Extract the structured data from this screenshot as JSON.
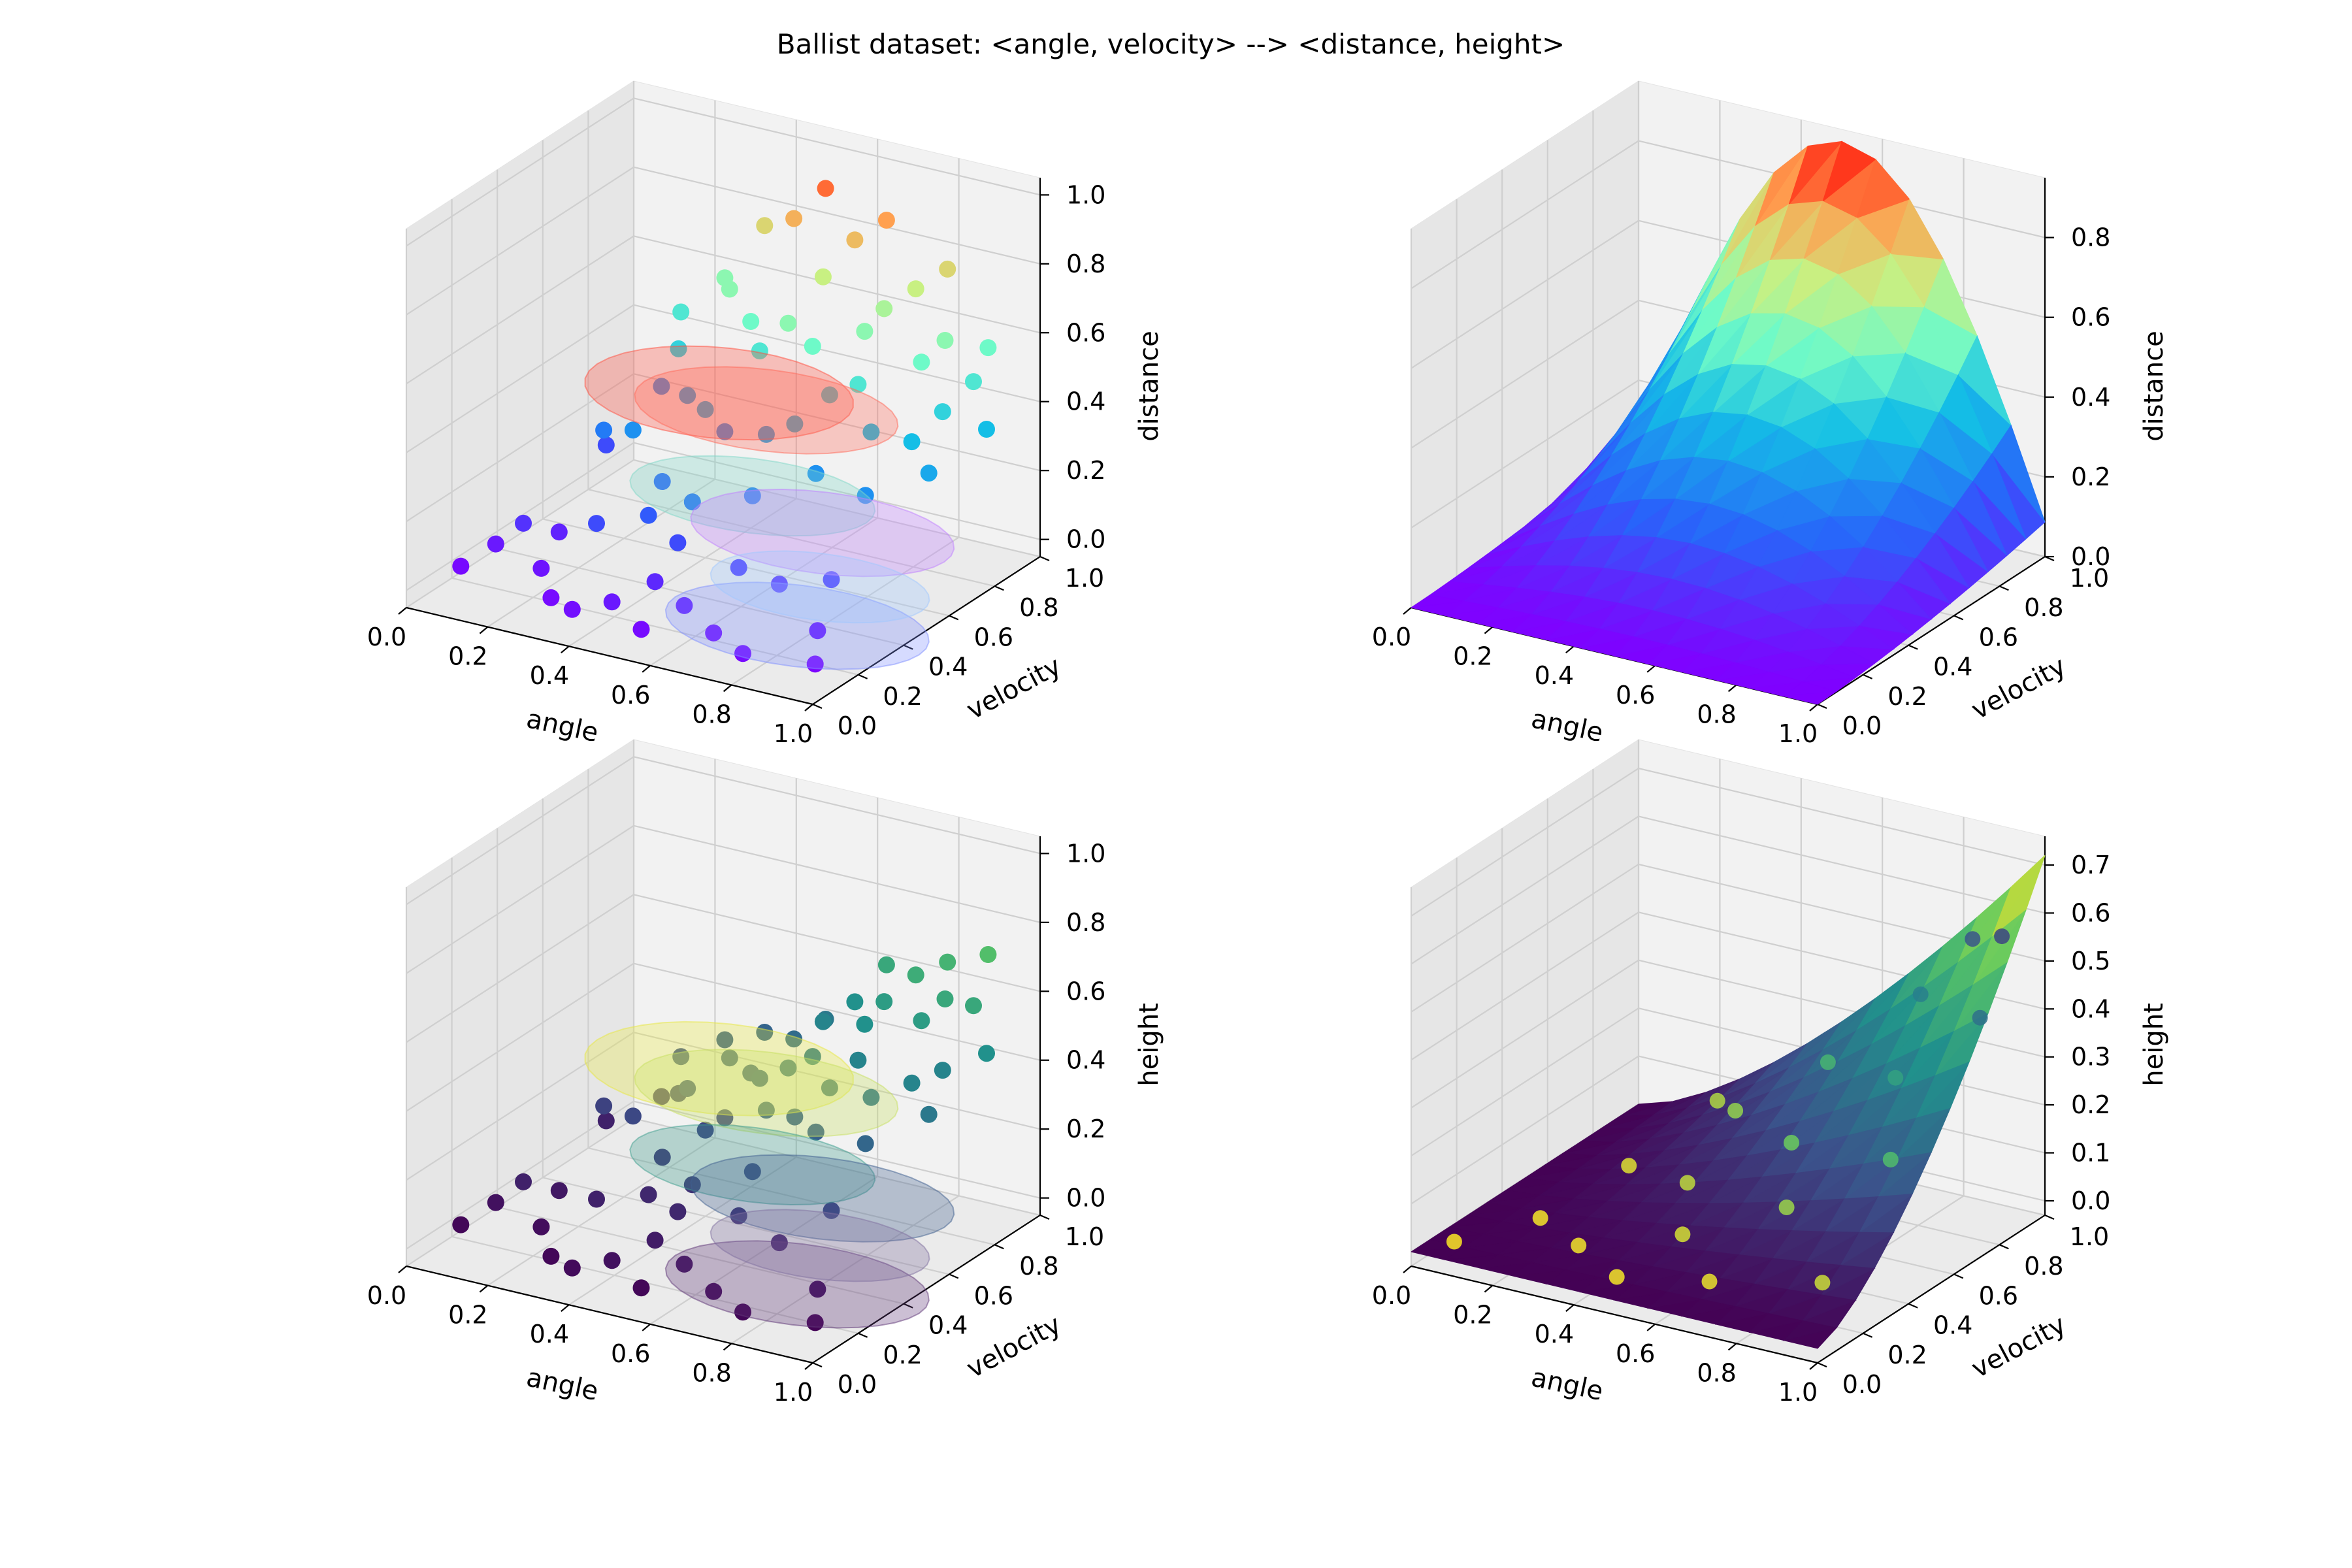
{
  "figure": {
    "title": "Ballist dataset: <angle, velocity> --> <distance, height>"
  },
  "chart_data": [
    {
      "id": "distance-scatter",
      "type": "scatter",
      "xlabel": "angle",
      "ylabel": "velocity",
      "zlabel": "distance",
      "xlim": [
        0,
        1
      ],
      "ylim": [
        0,
        1
      ],
      "zlim": [
        -0.05,
        1.05
      ],
      "xticks": [
        "0.0",
        "0.2",
        "0.4",
        "0.6",
        "0.8",
        "1.0"
      ],
      "yticks": [
        "0.0",
        "0.2",
        "0.4",
        "0.6",
        "0.8",
        "1.0"
      ],
      "zticks": [
        "0.0",
        "0.2",
        "0.4",
        "0.6",
        "0.8",
        "1.0"
      ],
      "colormap": "rainbow",
      "points": [
        [
          0.05,
          0.15,
          0.02
        ],
        [
          0.08,
          0.25,
          0.05
        ],
        [
          0.12,
          0.3,
          0.1
        ],
        [
          0.18,
          0.35,
          0.07
        ],
        [
          0.22,
          0.2,
          0.04
        ],
        [
          0.3,
          0.1,
          0.02
        ],
        [
          0.38,
          0.05,
          0.03
        ],
        [
          0.45,
          0.1,
          0.05
        ],
        [
          0.5,
          0.2,
          0.08
        ],
        [
          0.55,
          0.05,
          0.02
        ],
        [
          0.6,
          0.15,
          0.06
        ],
        [
          0.7,
          0.1,
          0.03
        ],
        [
          0.75,
          0.3,
          0.1
        ],
        [
          0.8,
          0.05,
          0.02
        ],
        [
          0.9,
          0.2,
          0.05
        ],
        [
          0.95,
          0.1,
          0.01
        ],
        [
          0.15,
          0.6,
          0.25
        ],
        [
          0.25,
          0.55,
          0.3
        ],
        [
          0.3,
          0.7,
          0.35
        ],
        [
          0.35,
          0.5,
          0.2
        ],
        [
          0.42,
          0.65,
          0.3
        ],
        [
          0.48,
          0.4,
          0.22
        ],
        [
          0.55,
          0.6,
          0.35
        ],
        [
          0.6,
          0.45,
          0.25
        ],
        [
          0.65,
          0.7,
          0.45
        ],
        [
          0.7,
          0.55,
          0.3
        ],
        [
          0.78,
          0.65,
          0.4
        ],
        [
          0.85,
          0.5,
          0.3
        ],
        [
          0.9,
          0.75,
          0.45
        ],
        [
          0.95,
          0.6,
          0.35
        ],
        [
          0.2,
          0.85,
          0.5
        ],
        [
          0.28,
          0.9,
          0.6
        ],
        [
          0.35,
          0.95,
          0.75
        ],
        [
          0.4,
          0.8,
          0.55
        ],
        [
          0.45,
          0.9,
          0.82
        ],
        [
          0.5,
          0.95,
          0.9
        ],
        [
          0.55,
          0.85,
          0.7
        ],
        [
          0.6,
          0.9,
          0.8
        ],
        [
          0.65,
          0.95,
          0.85
        ],
        [
          0.7,
          0.85,
          0.65
        ],
        [
          0.75,
          0.9,
          0.7
        ],
        [
          0.8,
          0.95,
          0.75
        ],
        [
          0.85,
          0.85,
          0.6
        ],
        [
          0.9,
          0.95,
          0.55
        ],
        [
          0.1,
          0.7,
          0.15
        ],
        [
          0.18,
          0.8,
          0.3
        ],
        [
          0.25,
          0.75,
          0.45
        ],
        [
          0.32,
          0.85,
          0.6
        ],
        [
          0.4,
          0.6,
          0.38
        ],
        [
          0.45,
          0.75,
          0.5
        ],
        [
          0.52,
          0.75,
          0.6
        ],
        [
          0.58,
          0.75,
          0.55
        ],
        [
          0.62,
          0.6,
          0.4
        ],
        [
          0.68,
          0.8,
          0.6
        ],
        [
          0.72,
          0.7,
          0.5
        ],
        [
          0.82,
          0.8,
          0.55
        ],
        [
          0.88,
          0.65,
          0.4
        ],
        [
          0.92,
          0.85,
          0.5
        ],
        [
          0.98,
          0.8,
          0.4
        ],
        [
          0.3,
          0.3,
          0.15
        ],
        [
          0.4,
          0.35,
          0.18
        ],
        [
          0.5,
          0.3,
          0.15
        ],
        [
          0.65,
          0.3,
          0.12
        ],
        [
          0.85,
          0.35,
          0.12
        ]
      ],
      "ellipses": [
        {
          "cx": 0.35,
          "cy": 0.75,
          "z": 0.35,
          "rx": 0.3,
          "ry": 0.25,
          "color": "#ff5040"
        },
        {
          "cx": 0.55,
          "cy": 0.6,
          "z": 0.42,
          "rx": 0.3,
          "ry": 0.22,
          "color": "#ff6a5a"
        },
        {
          "cx": 0.6,
          "cy": 0.45,
          "z": 0.25,
          "rx": 0.28,
          "ry": 0.2,
          "color": "#80d8c8"
        },
        {
          "cx": 0.8,
          "cy": 0.4,
          "z": 0.22,
          "rx": 0.3,
          "ry": 0.22,
          "color": "#c080ff"
        },
        {
          "cx": 0.85,
          "cy": 0.2,
          "z": 0.05,
          "rx": 0.3,
          "ry": 0.22,
          "color": "#8090ff"
        },
        {
          "cx": 0.85,
          "cy": 0.3,
          "z": 0.12,
          "rx": 0.25,
          "ry": 0.18,
          "color": "#a0c8ff"
        }
      ]
    },
    {
      "id": "distance-surface",
      "type": "surface",
      "xlabel": "angle",
      "ylabel": "velocity",
      "zlabel": "distance",
      "xlim": [
        0,
        1
      ],
      "ylim": [
        0,
        1
      ],
      "zlim": [
        0,
        0.95
      ],
      "xticks": [
        "0.0",
        "0.2",
        "0.4",
        "0.6",
        "0.8",
        "1.0"
      ],
      "yticks": [
        "0.0",
        "0.2",
        "0.4",
        "0.6",
        "0.8",
        "1.0"
      ],
      "zticks": [
        "0.0",
        "0.2",
        "0.4",
        "0.6",
        "0.8"
      ],
      "colormap": "rainbow",
      "surface": "distance"
    },
    {
      "id": "height-scatter",
      "type": "scatter",
      "xlabel": "angle",
      "ylabel": "velocity",
      "zlabel": "height",
      "xlim": [
        0,
        1
      ],
      "ylim": [
        0,
        1
      ],
      "zlim": [
        -0.05,
        1.05
      ],
      "xticks": [
        "0.0",
        "0.2",
        "0.4",
        "0.6",
        "0.8",
        "1.0"
      ],
      "yticks": [
        "0.0",
        "0.2",
        "0.4",
        "0.6",
        "0.8",
        "1.0"
      ],
      "zticks": [
        "0.0",
        "0.2",
        "0.4",
        "0.6",
        "0.8",
        "1.0"
      ],
      "colormap": "viridis",
      "points": [
        [
          0.05,
          0.15,
          0.02
        ],
        [
          0.08,
          0.25,
          0.05
        ],
        [
          0.12,
          0.3,
          0.1
        ],
        [
          0.18,
          0.35,
          0.07
        ],
        [
          0.22,
          0.2,
          0.04
        ],
        [
          0.3,
          0.1,
          0.02
        ],
        [
          0.38,
          0.05,
          0.03
        ],
        [
          0.45,
          0.1,
          0.05
        ],
        [
          0.5,
          0.2,
          0.08
        ],
        [
          0.55,
          0.05,
          0.02
        ],
        [
          0.6,
          0.15,
          0.06
        ],
        [
          0.7,
          0.1,
          0.03
        ],
        [
          0.75,
          0.3,
          0.1
        ],
        [
          0.8,
          0.05,
          0.02
        ],
        [
          0.9,
          0.2,
          0.05
        ],
        [
          0.95,
          0.1,
          0.01
        ],
        [
          0.15,
          0.6,
          0.2
        ],
        [
          0.25,
          0.55,
          0.22
        ],
        [
          0.3,
          0.7,
          0.25
        ],
        [
          0.35,
          0.5,
          0.15
        ],
        [
          0.42,
          0.65,
          0.22
        ],
        [
          0.48,
          0.4,
          0.15
        ],
        [
          0.55,
          0.6,
          0.3
        ],
        [
          0.6,
          0.45,
          0.2
        ],
        [
          0.65,
          0.7,
          0.35
        ],
        [
          0.7,
          0.55,
          0.3
        ],
        [
          0.78,
          0.65,
          0.38
        ],
        [
          0.85,
          0.5,
          0.33
        ],
        [
          0.9,
          0.75,
          0.45
        ],
        [
          0.95,
          0.6,
          0.4
        ],
        [
          0.2,
          0.85,
          0.25
        ],
        [
          0.28,
          0.9,
          0.3
        ],
        [
          0.35,
          0.95,
          0.32
        ],
        [
          0.4,
          0.8,
          0.28
        ],
        [
          0.45,
          0.9,
          0.35
        ],
        [
          0.5,
          0.95,
          0.4
        ],
        [
          0.55,
          0.85,
          0.45
        ],
        [
          0.6,
          0.9,
          0.5
        ],
        [
          0.65,
          0.95,
          0.6
        ],
        [
          0.7,
          0.85,
          0.55
        ],
        [
          0.75,
          0.9,
          0.62
        ],
        [
          0.8,
          0.95,
          0.65
        ],
        [
          0.85,
          0.85,
          0.6
        ],
        [
          0.9,
          0.95,
          0.7
        ],
        [
          0.1,
          0.7,
          0.1
        ],
        [
          0.18,
          0.8,
          0.15
        ],
        [
          0.25,
          0.75,
          0.2
        ],
        [
          0.32,
          0.85,
          0.28
        ],
        [
          0.4,
          0.6,
          0.2
        ],
        [
          0.45,
          0.75,
          0.3
        ],
        [
          0.52,
          0.75,
          0.35
        ],
        [
          0.58,
          0.75,
          0.4
        ],
        [
          0.62,
          0.6,
          0.3
        ],
        [
          0.68,
          0.8,
          0.5
        ],
        [
          0.72,
          0.7,
          0.45
        ],
        [
          0.82,
          0.8,
          0.55
        ],
        [
          0.88,
          0.65,
          0.45
        ],
        [
          0.92,
          0.85,
          0.6
        ],
        [
          0.98,
          0.8,
          0.5
        ],
        [
          0.3,
          0.3,
          0.1
        ],
        [
          0.4,
          0.35,
          0.12
        ],
        [
          0.5,
          0.3,
          0.12
        ],
        [
          0.65,
          0.3,
          0.15
        ],
        [
          0.85,
          0.35,
          0.2
        ]
      ],
      "ellipses": [
        {
          "cx": 0.35,
          "cy": 0.75,
          "z": 0.3,
          "rx": 0.3,
          "ry": 0.25,
          "color": "#e8e840"
        },
        {
          "cx": 0.55,
          "cy": 0.6,
          "z": 0.35,
          "rx": 0.3,
          "ry": 0.22,
          "color": "#c8e060"
        },
        {
          "cx": 0.6,
          "cy": 0.45,
          "z": 0.22,
          "rx": 0.28,
          "ry": 0.2,
          "color": "#40a090"
        },
        {
          "cx": 0.8,
          "cy": 0.4,
          "z": 0.2,
          "rx": 0.3,
          "ry": 0.22,
          "color": "#406090"
        },
        {
          "cx": 0.85,
          "cy": 0.2,
          "z": 0.05,
          "rx": 0.3,
          "ry": 0.22,
          "color": "#603878"
        },
        {
          "cx": 0.85,
          "cy": 0.3,
          "z": 0.12,
          "rx": 0.25,
          "ry": 0.18,
          "color": "#8070a0"
        }
      ]
    },
    {
      "id": "height-surface",
      "type": "surface",
      "xlabel": "angle",
      "ylabel": "velocity",
      "zlabel": "height",
      "xlim": [
        0,
        1
      ],
      "ylim": [
        0,
        1
      ],
      "zlim": [
        -0.03,
        0.76
      ],
      "xticks": [
        "0.0",
        "0.2",
        "0.4",
        "0.6",
        "0.8",
        "1.0"
      ],
      "yticks": [
        "0.0",
        "0.2",
        "0.4",
        "0.6",
        "0.8",
        "1.0"
      ],
      "zticks": [
        "0.0",
        "0.1",
        "0.2",
        "0.3",
        "0.4",
        "0.5",
        "0.6",
        "0.7"
      ],
      "colormap": "viridis",
      "surface": "height"
    }
  ]
}
